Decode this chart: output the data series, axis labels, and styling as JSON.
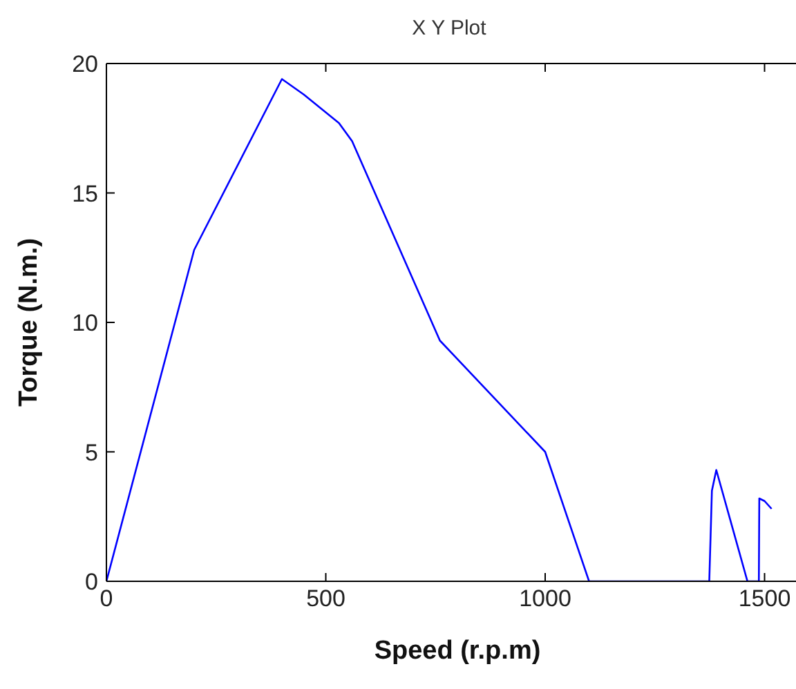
{
  "chart_data": {
    "type": "line",
    "title": "X Y Plot",
    "xlabel": "Speed (r.p.m)",
    "ylabel": "Torque (N.m.)",
    "x": [
      0,
      200,
      400,
      450,
      530,
      560,
      760,
      1000,
      1100,
      1374,
      1380,
      1390,
      1461,
      1487,
      1488,
      1500,
      1516
    ],
    "series": [
      {
        "color": "#0000ff",
        "values": [
          0,
          12.8,
          19.4,
          18.8,
          17.7,
          17.0,
          9.3,
          5.0,
          0,
          0,
          3.5,
          4.3,
          0,
          0,
          3.2,
          3.1,
          2.8
        ]
      }
    ],
    "xlim": [
      0,
      1600
    ],
    "xticks": [
      0,
      500,
      1000,
      1500
    ],
    "ylim": [
      0,
      20
    ],
    "yticks": [
      0,
      5,
      10,
      15,
      20
    ],
    "grid": false,
    "legend": false,
    "marker": "none",
    "line_style": "solid"
  }
}
